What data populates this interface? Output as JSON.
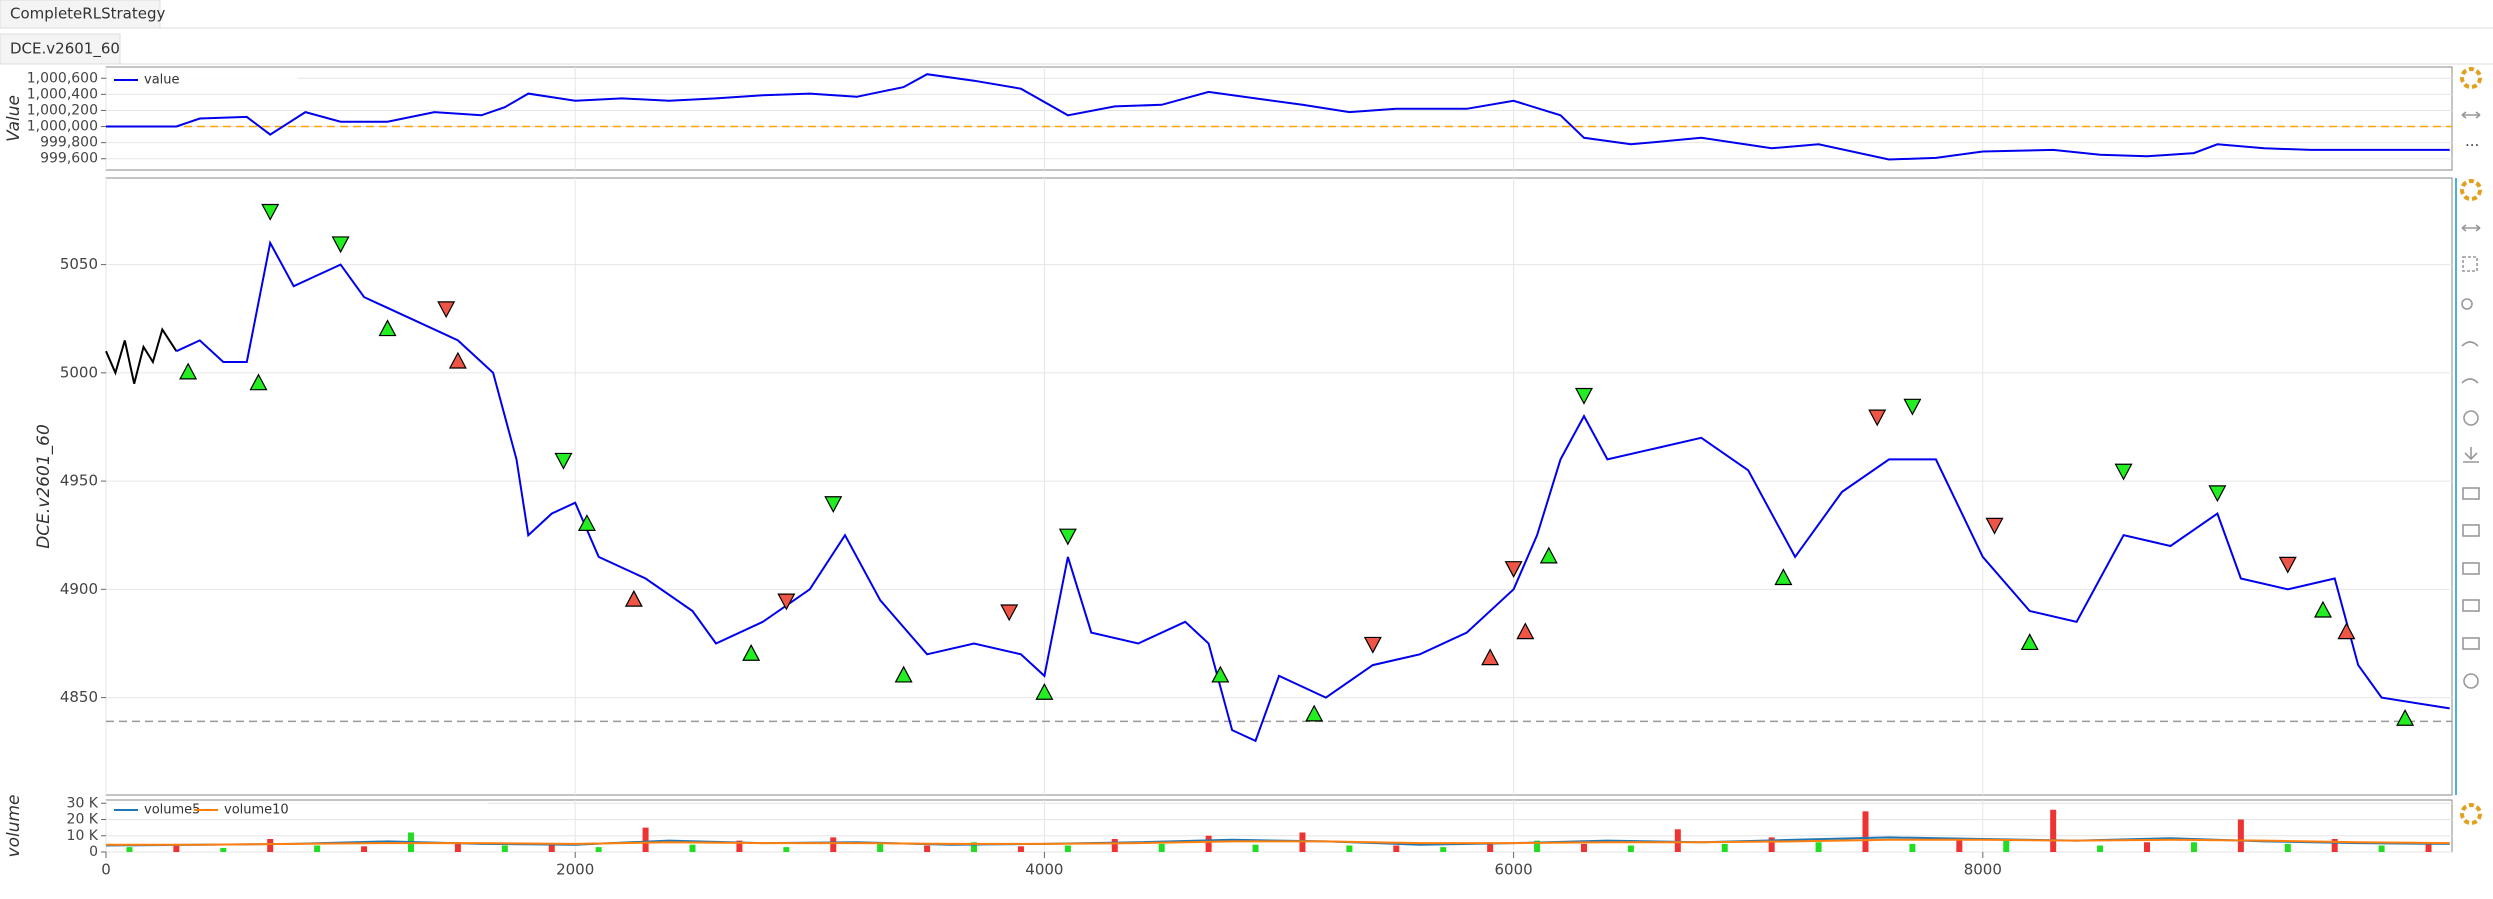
{
  "tabs": [
    "CompleteRLStrategy"
  ],
  "subtabs": [
    "DCE.v2601_60"
  ],
  "chart_data": [
    {
      "type": "line",
      "y_label": "Value",
      "legend": "top-left",
      "xlim": [
        0,
        10000
      ],
      "ylim": [
        999460,
        1000740
      ],
      "yticks": [
        {
          "value": 999600,
          "label": "999,600"
        },
        {
          "value": 999800,
          "label": "999,800"
        },
        {
          "value": 1000000,
          "label": "1,000,000"
        },
        {
          "value": 1000200,
          "label": "1,000,200"
        },
        {
          "value": 1000400,
          "label": "1,000,400"
        },
        {
          "value": 1000600,
          "label": "1,000,600"
        }
      ],
      "reference_line": {
        "y": 1000000,
        "color": "#ffa500"
      },
      "series": [
        {
          "name": "value",
          "color": "#0000ee",
          "x": [
            0,
            300,
            400,
            600,
            700,
            850,
            1000,
            1200,
            1400,
            1600,
            1700,
            1800,
            2000,
            2200,
            2400,
            2600,
            2800,
            3000,
            3200,
            3400,
            3500,
            3700,
            3900,
            4100,
            4300,
            4500,
            4700,
            4900,
            5100,
            5300,
            5500,
            5800,
            6000,
            6200,
            6300,
            6500,
            6800,
            7100,
            7300,
            7600,
            7800,
            8000,
            8300,
            8500,
            8700,
            8900,
            9000,
            9200,
            9400,
            9600,
            9990
          ],
          "values": [
            1000000,
            1000000,
            1000100,
            1000120,
            999900,
            1000180,
            1000060,
            1000060,
            1000180,
            1000140,
            1000240,
            1000410,
            1000320,
            1000350,
            1000320,
            1000350,
            1000390,
            1000410,
            1000370,
            1000490,
            1000650,
            1000570,
            1000470,
            1000140,
            1000250,
            1000270,
            1000430,
            1000350,
            1000270,
            1000180,
            1000220,
            1000220,
            1000320,
            1000140,
            999860,
            999780,
            999860,
            999730,
            999780,
            999590,
            999610,
            999690,
            999710,
            999650,
            999630,
            999670,
            999780,
            999730,
            999710,
            999710,
            999710
          ]
        }
      ]
    },
    {
      "type": "line",
      "y_label": "DCE.v2601_60",
      "xlim": [
        0,
        10000
      ],
      "ylim": [
        4805,
        5090
      ],
      "yticks": [
        4850,
        4900,
        4950,
        5000,
        5050
      ],
      "reference_line": {
        "y": 4839,
        "color": "#999999"
      },
      "series": [
        {
          "color": "#000000",
          "x": [
            0,
            40,
            80,
            120,
            160,
            200,
            240,
            300
          ],
          "values": [
            5010,
            5000,
            5015,
            4995,
            5012,
            5005,
            5020,
            5010
          ]
        },
        {
          "color": "#0000ee",
          "x": [
            300,
            400,
            500,
            600,
            700,
            800,
            900,
            1000,
            1100,
            1300,
            1500,
            1650,
            1750,
            1800,
            1900,
            2000,
            2100,
            2300,
            2500,
            2600,
            2800,
            3000,
            3150,
            3300,
            3500,
            3700,
            3900,
            4000,
            4100,
            4200,
            4400,
            4600,
            4700,
            4800,
            4900,
            5000,
            5200,
            5400,
            5600,
            5800,
            6000,
            6100,
            6200,
            6300,
            6400,
            6600,
            6800,
            7000,
            7200,
            7400,
            7600,
            7800,
            8000,
            8200,
            8400,
            8600,
            8800,
            9000,
            9100,
            9300,
            9500,
            9600,
            9700,
            9990
          ],
          "values": [
            5010,
            5015,
            5005,
            5005,
            5060,
            5040,
            5045,
            5050,
            5035,
            5025,
            5015,
            5000,
            4960,
            4925,
            4935,
            4940,
            4915,
            4905,
            4890,
            4875,
            4885,
            4900,
            4925,
            4895,
            4870,
            4875,
            4870,
            4860,
            4915,
            4880,
            4875,
            4885,
            4875,
            4835,
            4830,
            4860,
            4850,
            4865,
            4870,
            4880,
            4900,
            4925,
            4960,
            4980,
            4960,
            4965,
            4970,
            4955,
            4915,
            4945,
            4960,
            4960,
            4915,
            4890,
            4885,
            4925,
            4920,
            4935,
            4905,
            4900,
            4905,
            4865,
            4850,
            4845
          ]
        }
      ],
      "markers": [
        {
          "shape": "up",
          "color": "#22ee22",
          "x": [
            350,
            650,
            1200,
            2050,
            2750,
            3400,
            4000,
            4750,
            5150,
            6150,
            7150,
            8200,
            9450,
            9800
          ],
          "y": [
            5000,
            4995,
            5020,
            4930,
            4870,
            4860,
            4852,
            4860,
            4842,
            4915,
            4905,
            4875,
            4890,
            4840
          ]
        },
        {
          "shape": "down",
          "color": "#22ee22",
          "x": [
            700,
            1000,
            1950,
            3100,
            4100,
            6300,
            7700,
            8600,
            9000
          ],
          "y": [
            5075,
            5060,
            4960,
            4940,
            4925,
            4990,
            4985,
            4955,
            4945
          ]
        },
        {
          "shape": "down",
          "color": "#ee5544",
          "x": [
            1450,
            2900,
            3850,
            5400,
            6000,
            7550,
            8050,
            9300
          ],
          "y": [
            5030,
            4895,
            4890,
            4875,
            4910,
            4980,
            4930,
            4912
          ]
        },
        {
          "shape": "up",
          "color": "#ee5544",
          "x": [
            1500,
            2250,
            5900,
            6050,
            9550
          ],
          "y": [
            5005,
            4895,
            4868,
            4880,
            4880
          ]
        }
      ]
    },
    {
      "type": "bar",
      "y_label": "volume",
      "legend": "top-left",
      "xlim": [
        0,
        10000
      ],
      "ylim": [
        0,
        32000
      ],
      "yticks": [
        0,
        {
          "value": 10000,
          "label": "10 K"
        },
        {
          "value": 20000,
          "label": "20 K"
        },
        {
          "value": 30000,
          "label": "30 K"
        }
      ],
      "xticks": [
        0,
        2000,
        4000,
        6000,
        8000
      ],
      "bars": [
        {
          "color": "#22dd22",
          "x": [
            100,
            500,
            900,
            1300,
            1700,
            2100,
            2500,
            2900,
            3300,
            3700,
            4100,
            4500,
            4900,
            5300,
            5700,
            6100,
            6500,
            6900,
            7300,
            7700,
            8100,
            8500,
            8900,
            9300,
            9700
          ],
          "values": [
            3000,
            2500,
            4000,
            12000,
            4000,
            3000,
            4500,
            3000,
            5000,
            6000,
            4000,
            5000,
            4500,
            4000,
            3000,
            7000,
            4000,
            5000,
            6000,
            5000,
            7000,
            4000,
            6000,
            5000,
            4000
          ]
        },
        {
          "color": "#ee3333",
          "x": [
            300,
            700,
            1100,
            1500,
            1900,
            2300,
            2700,
            3100,
            3500,
            3900,
            4300,
            4700,
            5100,
            5500,
            5900,
            6300,
            6700,
            7100,
            7500,
            7900,
            8300,
            8700,
            9100,
            9500,
            9900
          ],
          "values": [
            5000,
            8000,
            3500,
            6000,
            5000,
            15000,
            7000,
            9000,
            4000,
            3500,
            8000,
            10000,
            12000,
            4000,
            6000,
            5000,
            14000,
            9000,
            25000,
            8000,
            26000,
            6000,
            20000,
            8000,
            6000
          ]
        }
      ],
      "series": [
        {
          "name": "volume5",
          "color": "#1f77b4",
          "x": [
            0,
            400,
            800,
            1200,
            1600,
            2000,
            2400,
            2800,
            3200,
            3600,
            4000,
            4400,
            4800,
            5200,
            5600,
            6000,
            6400,
            6800,
            7200,
            7600,
            8000,
            8400,
            8800,
            9200,
            9600,
            9990
          ],
          "values": [
            4000,
            4500,
            5000,
            6500,
            5000,
            4500,
            7000,
            5500,
            6000,
            4500,
            5000,
            6000,
            7500,
            6500,
            4500,
            5500,
            7000,
            6000,
            7500,
            9000,
            8000,
            7000,
            8500,
            6500,
            5500,
            5000
          ]
        },
        {
          "name": "volume10",
          "color": "#ff7f0e",
          "x": [
            0,
            400,
            800,
            1200,
            1600,
            2000,
            2400,
            2800,
            3200,
            3600,
            4000,
            4400,
            4800,
            5200,
            5600,
            6000,
            6400,
            6800,
            7200,
            7600,
            8000,
            8400,
            8800,
            9200,
            9600,
            9990
          ],
          "values": [
            4500,
            4500,
            5000,
            5500,
            5500,
            5000,
            6000,
            5500,
            5500,
            5000,
            5000,
            5500,
            6500,
            6500,
            5500,
            5500,
            6000,
            6000,
            6500,
            7500,
            7500,
            7000,
            7500,
            7000,
            6000,
            5500
          ]
        }
      ]
    }
  ]
}
